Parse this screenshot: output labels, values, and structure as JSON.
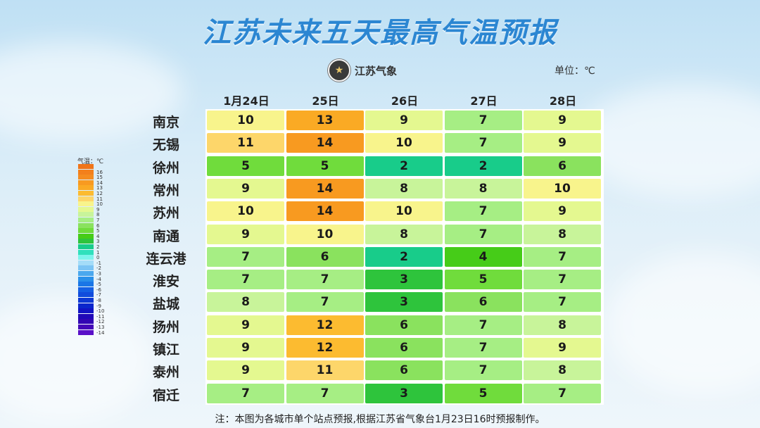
{
  "title": "江苏未来五天最高气温预报",
  "logo_text": "江苏气象",
  "unit_label": "单位：℃",
  "legend_title": "气温：℃",
  "note": "注：本图为各城市单个站点预报,根据江苏省气象台1月23日16时预报制作。",
  "chart_data": {
    "type": "table",
    "columns": [
      "1月24日",
      "25日",
      "26日",
      "27日",
      "28日"
    ],
    "rows": [
      {
        "city": "南京",
        "values": [
          10,
          13,
          9,
          7,
          9
        ]
      },
      {
        "city": "无锡",
        "values": [
          11,
          14,
          10,
          7,
          9
        ]
      },
      {
        "city": "徐州",
        "values": [
          5,
          5,
          2,
          2,
          6
        ]
      },
      {
        "city": "常州",
        "values": [
          9,
          14,
          8,
          8,
          10
        ]
      },
      {
        "city": "苏州",
        "values": [
          10,
          14,
          10,
          7,
          9
        ]
      },
      {
        "city": "南通",
        "values": [
          9,
          10,
          8,
          7,
          8
        ]
      },
      {
        "city": "连云港",
        "values": [
          7,
          6,
          2,
          4,
          7
        ]
      },
      {
        "city": "淮安",
        "values": [
          7,
          7,
          3,
          5,
          7
        ]
      },
      {
        "city": "盐城",
        "values": [
          8,
          7,
          3,
          6,
          7
        ]
      },
      {
        "city": "扬州",
        "values": [
          9,
          12,
          6,
          7,
          8
        ]
      },
      {
        "city": "镇江",
        "values": [
          9,
          12,
          6,
          7,
          9
        ]
      },
      {
        "city": "泰州",
        "values": [
          9,
          11,
          6,
          7,
          8
        ]
      },
      {
        "city": "宿迁",
        "values": [
          7,
          7,
          3,
          5,
          7
        ]
      }
    ],
    "legend": [
      {
        "value": "",
        "color": "#f07418"
      },
      {
        "value": "16",
        "color": "#f3801c"
      },
      {
        "value": "15",
        "color": "#f58c20"
      },
      {
        "value": "14",
        "color": "#f89a20"
      },
      {
        "value": "13",
        "color": "#faaa24"
      },
      {
        "value": "12",
        "color": "#fcbb30"
      },
      {
        "value": "11",
        "color": "#fdd66a"
      },
      {
        "value": "10",
        "color": "#f8f48c"
      },
      {
        "value": "9",
        "color": "#e4f890"
      },
      {
        "value": "8",
        "color": "#c8f49a"
      },
      {
        "value": "7",
        "color": "#a6ee84"
      },
      {
        "value": "6",
        "color": "#8ae25e"
      },
      {
        "value": "5",
        "color": "#70dc3c"
      },
      {
        "value": "4",
        "color": "#46cc18"
      },
      {
        "value": "3",
        "color": "#2ec43c"
      },
      {
        "value": "2",
        "color": "#18cc8a"
      },
      {
        "value": "1",
        "color": "#30e0bc"
      },
      {
        "value": "0",
        "color": "#7cf4ec"
      },
      {
        "value": "-1",
        "color": "#a4dcf8"
      },
      {
        "value": "-2",
        "color": "#7cc4f4"
      },
      {
        "value": "-3",
        "color": "#4aa8ee"
      },
      {
        "value": "-4",
        "color": "#2a90ea"
      },
      {
        "value": "-5",
        "color": "#1a76e6"
      },
      {
        "value": "-6",
        "color": "#1460e4"
      },
      {
        "value": "-7",
        "color": "#104cdc"
      },
      {
        "value": "-8",
        "color": "#0c38d4"
      },
      {
        "value": "-9",
        "color": "#0a26cc"
      },
      {
        "value": "-10",
        "color": "#1214c4"
      },
      {
        "value": "-11",
        "color": "#2008b8"
      },
      {
        "value": "-12",
        "color": "#3206b4"
      },
      {
        "value": "-13",
        "color": "#4408b8"
      },
      {
        "value": "-14",
        "color": "#5a10c8"
      }
    ]
  }
}
